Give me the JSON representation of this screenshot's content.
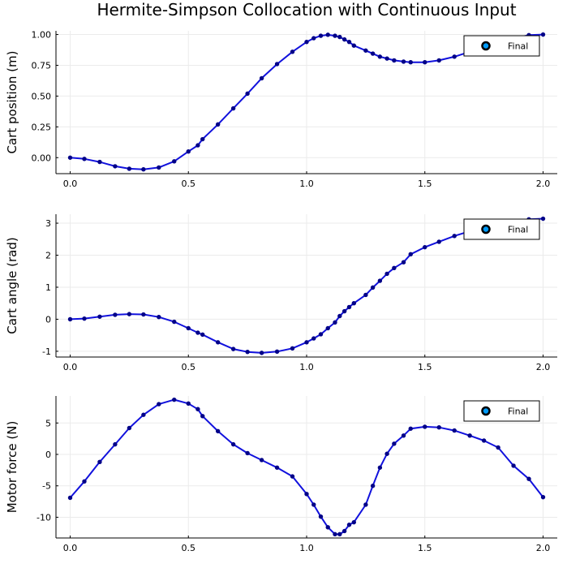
{
  "title": "Hermite-Simpson Collocation with Continuous Input",
  "legend_label": "Final",
  "colors": {
    "line": "#1111dd",
    "marker": "#000088",
    "legend_marker": "#009af9",
    "grid": "#ebebeb",
    "axis": "#000000"
  },
  "chart_data": [
    {
      "type": "line",
      "ylabel": "Cart position (m)",
      "xlabel": "",
      "xlim": [
        -0.06,
        2.06
      ],
      "ylim": [
        -0.13,
        1.03
      ],
      "xticks": [
        0,
        0.5,
        1.0,
        1.5,
        2.0
      ],
      "xtick_labels": [
        "0.0",
        "0.5",
        "1.0",
        "1.5",
        "2.0"
      ],
      "yticks": [
        0,
        0.25,
        0.5,
        0.75,
        1.0
      ],
      "ytick_labels": [
        "0.00",
        "0.25",
        "0.50",
        "0.75",
        "1.00"
      ],
      "grid": true,
      "legend": "top-right",
      "series": [
        {
          "name": "Final",
          "x": [
            0,
            0.06,
            0.125,
            0.19,
            0.25,
            0.31,
            0.375,
            0.44,
            0.5,
            0.54,
            0.56,
            0.625,
            0.69,
            0.75,
            0.81,
            0.875,
            0.94,
            1.0,
            1.03,
            1.06,
            1.09,
            1.12,
            1.14,
            1.16,
            1.18,
            1.2,
            1.25,
            1.28,
            1.31,
            1.34,
            1.37,
            1.41,
            1.44,
            1.5,
            1.56,
            1.625,
            1.69,
            1.75,
            1.81,
            1.875,
            1.94,
            2.0
          ],
          "values": [
            0.0,
            -0.01,
            -0.035,
            -0.07,
            -0.09,
            -0.095,
            -0.08,
            -0.03,
            0.05,
            0.1,
            0.15,
            0.27,
            0.4,
            0.52,
            0.645,
            0.76,
            0.86,
            0.94,
            0.97,
            0.99,
            0.998,
            0.99,
            0.98,
            0.96,
            0.94,
            0.91,
            0.87,
            0.845,
            0.82,
            0.805,
            0.79,
            0.78,
            0.775,
            0.775,
            0.79,
            0.82,
            0.86,
            0.9,
            0.94,
            0.97,
            0.995,
            1.0
          ]
        }
      ]
    },
    {
      "type": "line",
      "ylabel": "Cart angle (rad)",
      "xlabel": "",
      "xlim": [
        -0.06,
        2.06
      ],
      "ylim": [
        -1.18,
        3.28
      ],
      "xticks": [
        0,
        0.5,
        1.0,
        1.5,
        2.0
      ],
      "xtick_labels": [
        "0.0",
        "0.5",
        "1.0",
        "1.5",
        "2.0"
      ],
      "yticks": [
        -1,
        0,
        1,
        2,
        3
      ],
      "ytick_labels": [
        "-1",
        "0",
        "1",
        "2",
        "3"
      ],
      "grid": true,
      "legend": "top-right",
      "series": [
        {
          "name": "Final",
          "x": [
            0,
            0.06,
            0.125,
            0.19,
            0.25,
            0.31,
            0.375,
            0.44,
            0.5,
            0.54,
            0.56,
            0.625,
            0.69,
            0.75,
            0.81,
            0.875,
            0.94,
            1.0,
            1.03,
            1.06,
            1.09,
            1.12,
            1.14,
            1.16,
            1.18,
            1.2,
            1.25,
            1.28,
            1.31,
            1.34,
            1.37,
            1.41,
            1.44,
            1.5,
            1.56,
            1.625,
            1.69,
            1.75,
            1.81,
            1.875,
            1.94,
            2.0
          ],
          "values": [
            0.0,
            0.02,
            0.08,
            0.14,
            0.16,
            0.15,
            0.07,
            -0.08,
            -0.28,
            -0.42,
            -0.48,
            -0.72,
            -0.93,
            -1.02,
            -1.05,
            -1.01,
            -0.91,
            -0.72,
            -0.6,
            -0.47,
            -0.28,
            -0.1,
            0.1,
            0.25,
            0.38,
            0.5,
            0.76,
            0.99,
            1.2,
            1.42,
            1.6,
            1.78,
            2.03,
            2.25,
            2.42,
            2.6,
            2.75,
            2.88,
            2.97,
            3.05,
            3.12,
            3.14
          ]
        }
      ]
    },
    {
      "type": "line",
      "ylabel": "Motor force (N)",
      "xlabel": "",
      "xlim": [
        -0.06,
        2.06
      ],
      "ylim": [
        -13.3,
        9.3
      ],
      "xticks": [
        0,
        0.5,
        1.0,
        1.5,
        2.0
      ],
      "xtick_labels": [
        "0.0",
        "0.5",
        "1.0",
        "1.5",
        "2.0"
      ],
      "yticks": [
        -10,
        -5,
        0,
        5
      ],
      "ytick_labels": [
        "-10",
        "-5",
        "0",
        "5"
      ],
      "grid": true,
      "legend": "top-right",
      "series": [
        {
          "name": "Final",
          "x": [
            0,
            0.06,
            0.125,
            0.19,
            0.25,
            0.31,
            0.375,
            0.44,
            0.5,
            0.54,
            0.56,
            0.625,
            0.69,
            0.75,
            0.81,
            0.875,
            0.94,
            1.0,
            1.03,
            1.06,
            1.09,
            1.12,
            1.14,
            1.16,
            1.18,
            1.2,
            1.25,
            1.28,
            1.31,
            1.34,
            1.37,
            1.41,
            1.44,
            1.5,
            1.56,
            1.625,
            1.69,
            1.75,
            1.81,
            1.875,
            1.94,
            2.0
          ],
          "values": [
            -6.9,
            -4.3,
            -1.2,
            1.6,
            4.2,
            6.3,
            8.0,
            8.7,
            8.1,
            7.2,
            6.1,
            3.7,
            1.6,
            0.2,
            -0.9,
            -2.1,
            -3.5,
            -6.3,
            -8.0,
            -9.9,
            -11.6,
            -12.7,
            -12.7,
            -12.2,
            -11.2,
            -10.8,
            -8.0,
            -5.0,
            -2.1,
            0.1,
            1.7,
            3.0,
            4.1,
            4.4,
            4.3,
            3.8,
            3.0,
            2.2,
            1.1,
            -1.8,
            -3.9,
            -6.8
          ]
        }
      ]
    }
  ]
}
